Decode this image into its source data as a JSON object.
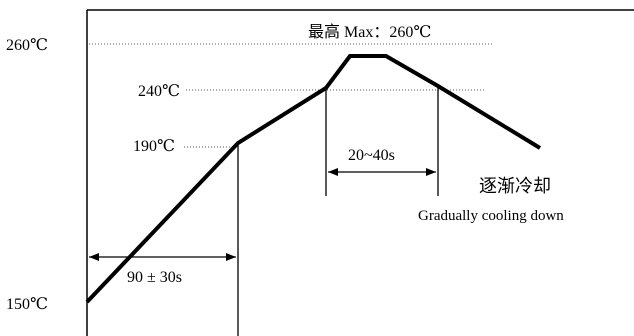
{
  "labels": {
    "t260": "260℃",
    "t240": "240℃",
    "t190": "190℃",
    "t150": "150℃",
    "peak": "最高 Max：260℃",
    "window_20_40": "20~40s",
    "window_90": "90 ± 30s",
    "cooling_cn": "逐渐冷却",
    "cooling_en": "Gradually cooling  down"
  },
  "colors": {
    "curve": "#000000",
    "axis": "#000000",
    "reference": "#555555"
  }
}
